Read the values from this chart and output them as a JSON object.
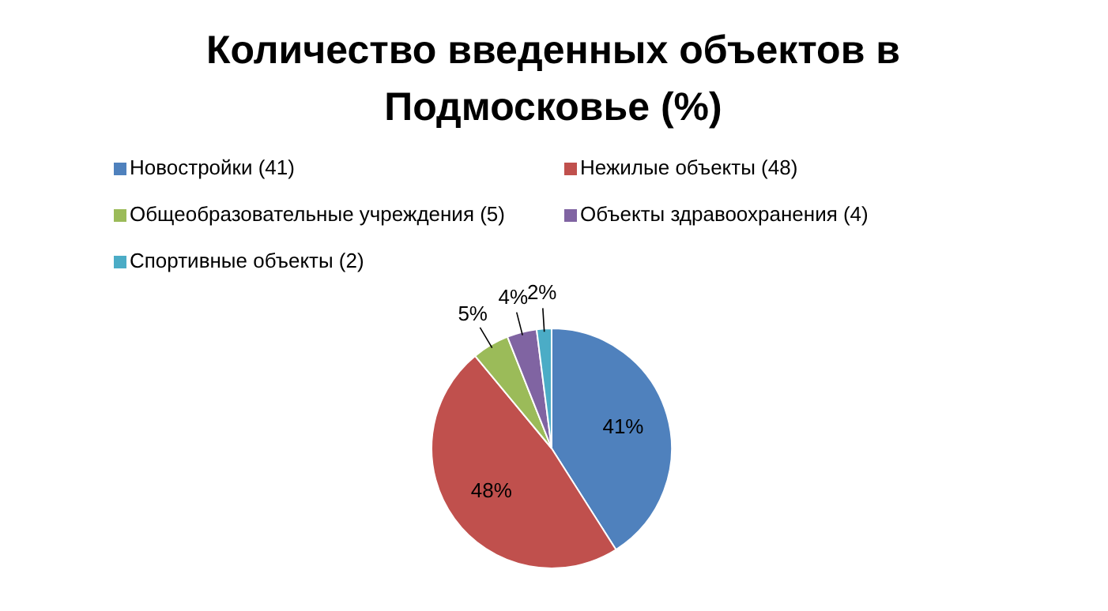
{
  "chart_data": {
    "type": "pie",
    "title": "Количество введенных объектов в Подмосковье (%)",
    "categories": [
      "Новостройки (41)",
      "Нежилые объекты (48)",
      "Общеобразовательные учреждения (5)",
      "Объекты здравоохранения (4)",
      "Спортивные объекты (2)"
    ],
    "values": [
      41,
      48,
      5,
      4,
      2
    ],
    "colors": [
      "#4f81bd",
      "#c0504d",
      "#9bbb59",
      "#8064a2",
      "#4bacc6"
    ],
    "value_labels": [
      "41%",
      "48%",
      "5%",
      "4%",
      "2%"
    ],
    "legend": "top"
  }
}
